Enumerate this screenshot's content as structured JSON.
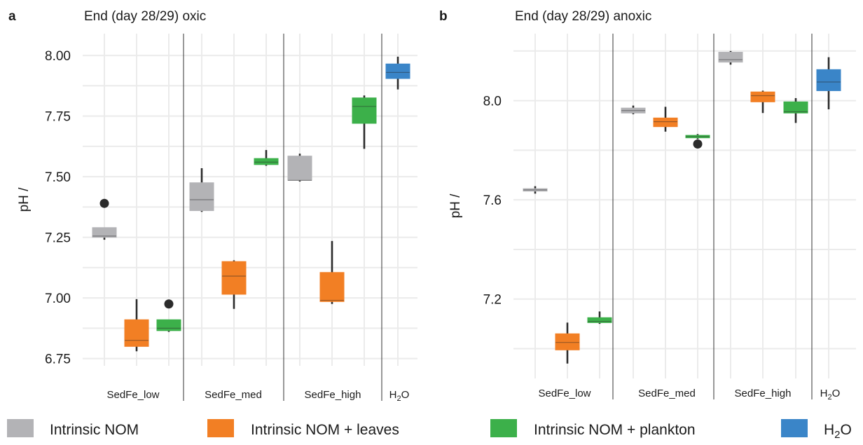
{
  "colors": {
    "Intrinsic NOM": "#b3b3b6",
    "Intrinsic NOM + leaves": "#f27f24",
    "Intrinsic NOM + plankton": "#3cb04a",
    "H2O": "#3a85c8",
    "grid": "#ebebeb",
    "divider": "#333333",
    "whisker": "#2b2b2b",
    "outlier": "#2b2b2b"
  },
  "legend": {
    "position": "bottom",
    "items": [
      {
        "key": "Intrinsic NOM",
        "label": "Intrinsic NOM"
      },
      {
        "key": "Intrinsic NOM + leaves",
        "label": "Intrinsic NOM + leaves"
      },
      {
        "key": "Intrinsic NOM + plankton",
        "label": "Intrinsic NOM + plankton"
      },
      {
        "key": "H2O",
        "label": "H",
        "sub": "2",
        "label_after": "O"
      }
    ]
  },
  "chart_data": [
    {
      "panel_letter": "a",
      "type": "box",
      "title": "End (day 28/29) oxic",
      "ylabel": "pH /",
      "ylim": [
        6.72,
        8.09
      ],
      "yticks": [
        6.75,
        7.0,
        7.25,
        7.5,
        7.75,
        8.0
      ],
      "ytick_labels": [
        "6.75",
        "7.00",
        "7.25",
        "7.50",
        "7.75",
        "8.00"
      ],
      "grid": true,
      "groups": [
        {
          "label": "SedFe_low",
          "boxes": [
            {
              "treatment": "Intrinsic NOM",
              "whisker_low": 7.24,
              "q1": 7.25,
              "median": 7.255,
              "q3": 7.29,
              "whisker_high": 7.29,
              "outliers": [
                7.39
              ]
            },
            {
              "treatment": "Intrinsic NOM + leaves",
              "whisker_low": 6.78,
              "q1": 6.8,
              "median": 6.825,
              "q3": 6.91,
              "whisker_high": 6.995,
              "outliers": []
            },
            {
              "treatment": "Intrinsic NOM + plankton",
              "whisker_low": 6.86,
              "q1": 6.865,
              "median": 6.875,
              "q3": 6.91,
              "whisker_high": 6.91,
              "outliers": [
                6.975
              ]
            }
          ]
        },
        {
          "label": "SedFe_med",
          "boxes": [
            {
              "treatment": "Intrinsic NOM",
              "whisker_low": 7.355,
              "q1": 7.36,
              "median": 7.405,
              "q3": 7.475,
              "whisker_high": 7.535,
              "outliers": []
            },
            {
              "treatment": "Intrinsic NOM + leaves",
              "whisker_low": 6.955,
              "q1": 7.015,
              "median": 7.09,
              "q3": 7.15,
              "whisker_high": 7.155,
              "outliers": []
            },
            {
              "treatment": "Intrinsic NOM + plankton",
              "whisker_low": 7.545,
              "q1": 7.55,
              "median": 7.56,
              "q3": 7.575,
              "whisker_high": 7.61,
              "outliers": []
            }
          ]
        },
        {
          "label": "SedFe_high",
          "boxes": [
            {
              "treatment": "Intrinsic NOM",
              "whisker_low": 7.48,
              "q1": 7.485,
              "median": 7.485,
              "q3": 7.585,
              "whisker_high": 7.595,
              "outliers": []
            },
            {
              "treatment": "Intrinsic NOM + leaves",
              "whisker_low": 6.975,
              "q1": 6.985,
              "median": 6.99,
              "q3": 7.105,
              "whisker_high": 7.235,
              "outliers": []
            },
            {
              "treatment": "Intrinsic NOM + plankton",
              "whisker_low": 7.615,
              "q1": 7.72,
              "median": 7.79,
              "q3": 7.825,
              "whisker_high": 7.835,
              "outliers": []
            }
          ]
        },
        {
          "label": "H",
          "label_sub": "2",
          "label_after": "O",
          "boxes": [
            {
              "treatment": "H2O",
              "whisker_low": 7.86,
              "q1": 7.905,
              "median": 7.93,
              "q3": 7.965,
              "whisker_high": 7.995,
              "outliers": []
            }
          ]
        }
      ]
    },
    {
      "panel_letter": "b",
      "type": "box",
      "title": "End (day 28/29) anoxic",
      "ylabel": "pH /",
      "ylim": [
        6.88,
        8.27
      ],
      "yticks": [
        7.2,
        7.6,
        8.0
      ],
      "ytick_labels": [
        "7.2",
        "7.6",
        "8.0"
      ],
      "grid": true,
      "groups": [
        {
          "label": "SedFe_low",
          "boxes": [
            {
              "treatment": "Intrinsic NOM",
              "whisker_low": 7.625,
              "q1": 7.635,
              "median": 7.64,
              "q3": 7.645,
              "whisker_high": 7.655,
              "outliers": []
            },
            {
              "treatment": "Intrinsic NOM + leaves",
              "whisker_low": 6.94,
              "q1": 6.995,
              "median": 7.025,
              "q3": 7.06,
              "whisker_high": 7.105,
              "outliers": []
            },
            {
              "treatment": "Intrinsic NOM + plankton",
              "whisker_low": 7.1,
              "q1": 7.105,
              "median": 7.11,
              "q3": 7.125,
              "whisker_high": 7.15,
              "outliers": []
            }
          ]
        },
        {
          "label": "SedFe_med",
          "boxes": [
            {
              "treatment": "Intrinsic NOM",
              "whisker_low": 7.945,
              "q1": 7.95,
              "median": 7.96,
              "q3": 7.97,
              "whisker_high": 7.98,
              "outliers": []
            },
            {
              "treatment": "Intrinsic NOM + leaves",
              "whisker_low": 7.875,
              "q1": 7.895,
              "median": 7.915,
              "q3": 7.93,
              "whisker_high": 7.975,
              "outliers": []
            },
            {
              "treatment": "Intrinsic NOM + plankton",
              "whisker_low": 7.845,
              "q1": 7.85,
              "median": 7.855,
              "q3": 7.86,
              "whisker_high": 7.865,
              "outliers": [
                7.825
              ]
            }
          ]
        },
        {
          "label": "SedFe_high",
          "boxes": [
            {
              "treatment": "Intrinsic NOM",
              "whisker_low": 8.145,
              "q1": 8.155,
              "median": 8.165,
              "q3": 8.195,
              "whisker_high": 8.2,
              "outliers": []
            },
            {
              "treatment": "Intrinsic NOM + leaves",
              "whisker_low": 7.95,
              "q1": 7.995,
              "median": 8.02,
              "q3": 8.035,
              "whisker_high": 8.04,
              "outliers": []
            },
            {
              "treatment": "Intrinsic NOM + plankton",
              "whisker_low": 7.91,
              "q1": 7.95,
              "median": 7.955,
              "q3": 7.995,
              "whisker_high": 8.01,
              "outliers": []
            }
          ]
        },
        {
          "label": "H",
          "label_sub": "2",
          "label_after": "O",
          "boxes": [
            {
              "treatment": "H2O",
              "whisker_low": 7.965,
              "q1": 8.04,
              "median": 8.075,
              "q3": 8.125,
              "whisker_high": 8.175,
              "outliers": []
            }
          ]
        }
      ]
    }
  ]
}
